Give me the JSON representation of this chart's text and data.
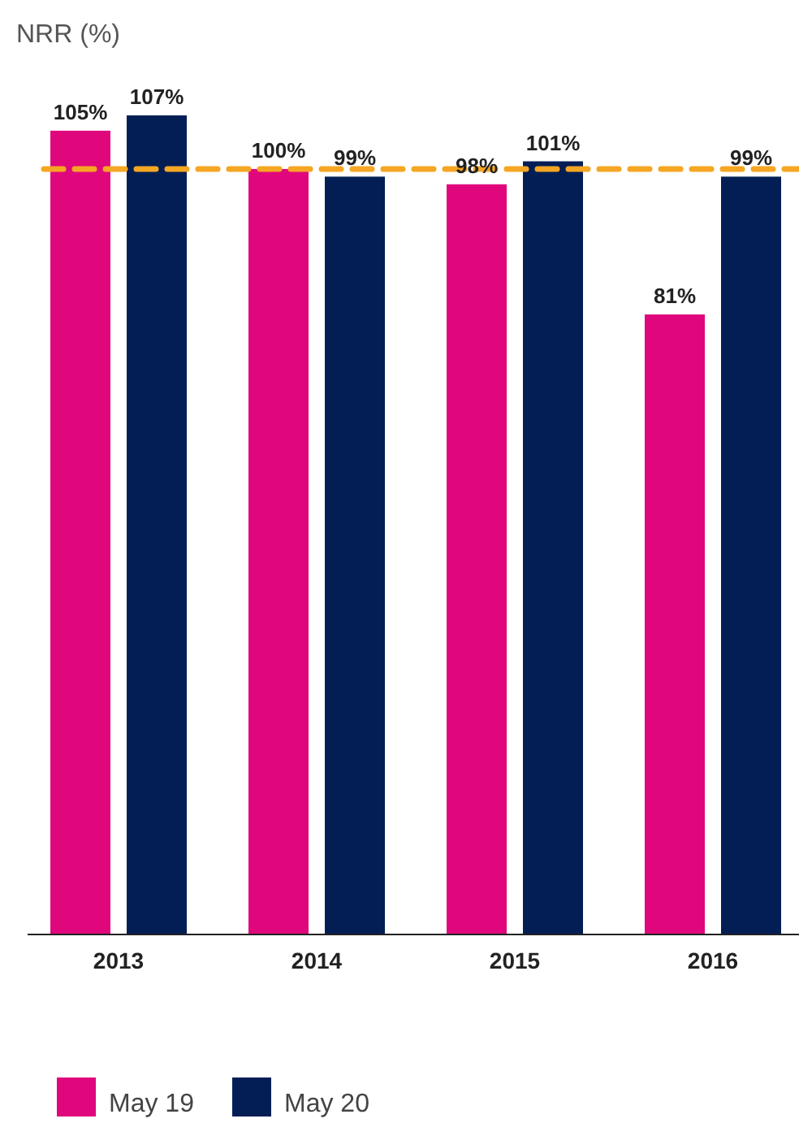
{
  "chart_data": {
    "type": "bar",
    "ylabel": "NRR (%)",
    "categories": [
      "2013",
      "2014",
      "2015",
      "2016"
    ],
    "series": [
      {
        "name": "May 19",
        "color": "#e0077d",
        "values": [
          105,
          100,
          98,
          81
        ],
        "value_labels": [
          "105%",
          "100%",
          "98%",
          "81%"
        ]
      },
      {
        "name": "May 20",
        "color": "#021e55",
        "values": [
          107,
          99,
          101,
          99
        ],
        "value_labels": [
          "107%",
          "99%",
          "101%",
          "99%"
        ]
      }
    ],
    "ref_lines": [
      {
        "axis": "y",
        "value": 100,
        "color": "#f5a623",
        "line_style": "dashed"
      }
    ],
    "legend": "bottom left"
  }
}
